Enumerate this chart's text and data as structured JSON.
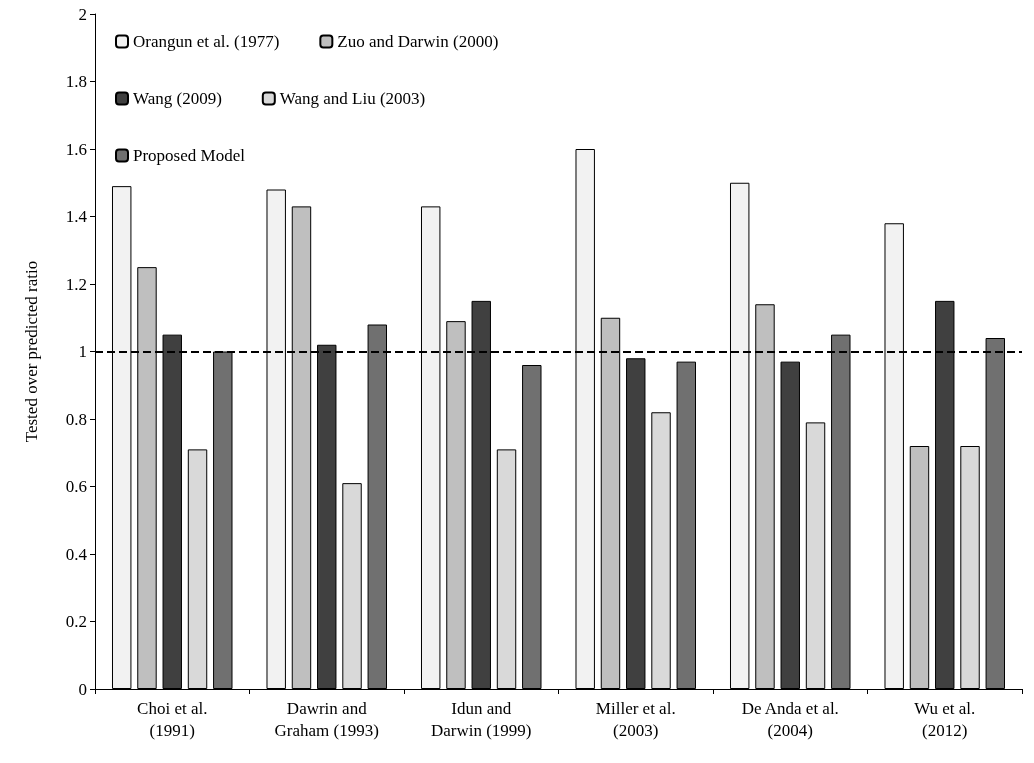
{
  "chart_data": {
    "type": "bar",
    "ylabel": "Tested over predicted ratio",
    "categories": [
      "Choi et al.\n(1991)",
      "Dawrin and\nGraham (1993)",
      "Idun and\nDarwin (1999)",
      "Miller et al.\n(2003)",
      "De Anda et al.\n(2004)",
      "Wu et al.\n(2012)"
    ],
    "series": [
      {
        "name": "Orangun et al. (1977)",
        "color": "#f2f2f2",
        "values": [
          1.49,
          1.48,
          1.43,
          1.6,
          1.5,
          1.38
        ]
      },
      {
        "name": "Zuo and Darwin (2000)",
        "color": "#bfbfbf",
        "values": [
          1.25,
          1.43,
          1.09,
          1.1,
          1.14,
          0.72
        ]
      },
      {
        "name": "Wang (2009)",
        "color": "#404040",
        "values": [
          1.05,
          1.02,
          1.15,
          0.98,
          0.97,
          1.15
        ]
      },
      {
        "name": "Wang and Liu (2003)",
        "color": "#d9d9d9",
        "values": [
          0.71,
          0.61,
          0.71,
          0.82,
          0.79,
          0.72
        ]
      },
      {
        "name": "Proposed Model",
        "color": "#707070",
        "values": [
          1.0,
          1.08,
          0.96,
          0.97,
          1.05,
          1.04
        ]
      }
    ],
    "ylim": [
      0,
      2
    ],
    "yticks": [
      0,
      0.2,
      0.4,
      0.6,
      0.8,
      1,
      1.2,
      1.4,
      1.6,
      1.8,
      2
    ],
    "ref_lines": [
      {
        "axis": "y",
        "value": 1,
        "color": "#000000",
        "line_style": "dashed"
      }
    ],
    "grid": false,
    "legend": "top left"
  }
}
